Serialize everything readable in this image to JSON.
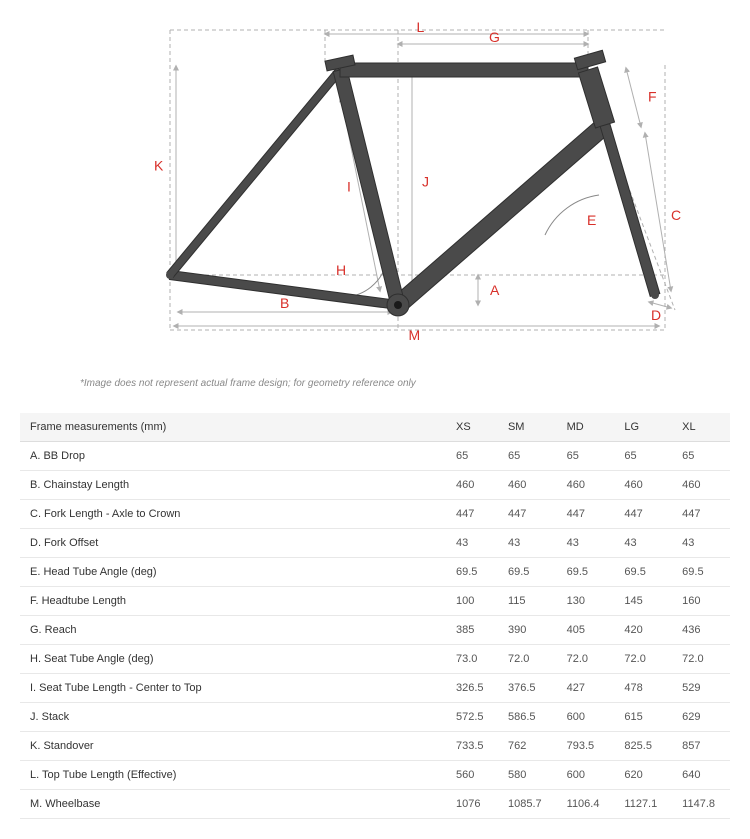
{
  "diagram": {
    "caption": "*Image does not represent actual frame design; for geometry reference only",
    "frame_color": "#4a4a4a",
    "frame_stroke": "#2f2f2f",
    "dim_line_color": "#b0b0b0",
    "arc_color": "#888888",
    "label_color": "#d8302a",
    "background": "#ffffff",
    "label_fontsize": 14,
    "labels": {
      "A": "A",
      "B": "B",
      "C": "C",
      "D": "D",
      "E": "E",
      "F": "F",
      "G": "G",
      "H": "H",
      "I": "I",
      "J": "J",
      "K": "K",
      "L": "L",
      "M": "M"
    }
  },
  "table": {
    "header_label": "Frame measurements (mm)",
    "sizes": [
      "XS",
      "SM",
      "MD",
      "LG",
      "XL"
    ],
    "rows": [
      {
        "m": "A. BB Drop",
        "v": [
          "65",
          "65",
          "65",
          "65",
          "65"
        ]
      },
      {
        "m": "B. Chainstay Length",
        "v": [
          "460",
          "460",
          "460",
          "460",
          "460"
        ]
      },
      {
        "m": "C. Fork Length - Axle to Crown",
        "v": [
          "447",
          "447",
          "447",
          "447",
          "447"
        ]
      },
      {
        "m": "D. Fork Offset",
        "v": [
          "43",
          "43",
          "43",
          "43",
          "43"
        ]
      },
      {
        "m": "E. Head Tube Angle (deg)",
        "v": [
          "69.5",
          "69.5",
          "69.5",
          "69.5",
          "69.5"
        ]
      },
      {
        "m": "F. Headtube Length",
        "v": [
          "100",
          "115",
          "130",
          "145",
          "160"
        ]
      },
      {
        "m": "G. Reach",
        "v": [
          "385",
          "390",
          "405",
          "420",
          "436"
        ]
      },
      {
        "m": "H. Seat Tube Angle (deg)",
        "v": [
          "73.0",
          "72.0",
          "72.0",
          "72.0",
          "72.0"
        ]
      },
      {
        "m": "I. Seat Tube Length - Center to Top",
        "v": [
          "326.5",
          "376.5",
          "427",
          "478",
          "529"
        ]
      },
      {
        "m": "J. Stack",
        "v": [
          "572.5",
          "586.5",
          "600",
          "615",
          "629"
        ]
      },
      {
        "m": "K. Standover",
        "v": [
          "733.5",
          "762",
          "793.5",
          "825.5",
          "857"
        ]
      },
      {
        "m": "L. Top Tube Length (Effective)",
        "v": [
          "560",
          "580",
          "600",
          "620",
          "640"
        ]
      },
      {
        "m": "M. Wheelbase",
        "v": [
          "1076",
          "1085.7",
          "1106.4",
          "1127.1",
          "1147.8"
        ]
      }
    ]
  }
}
